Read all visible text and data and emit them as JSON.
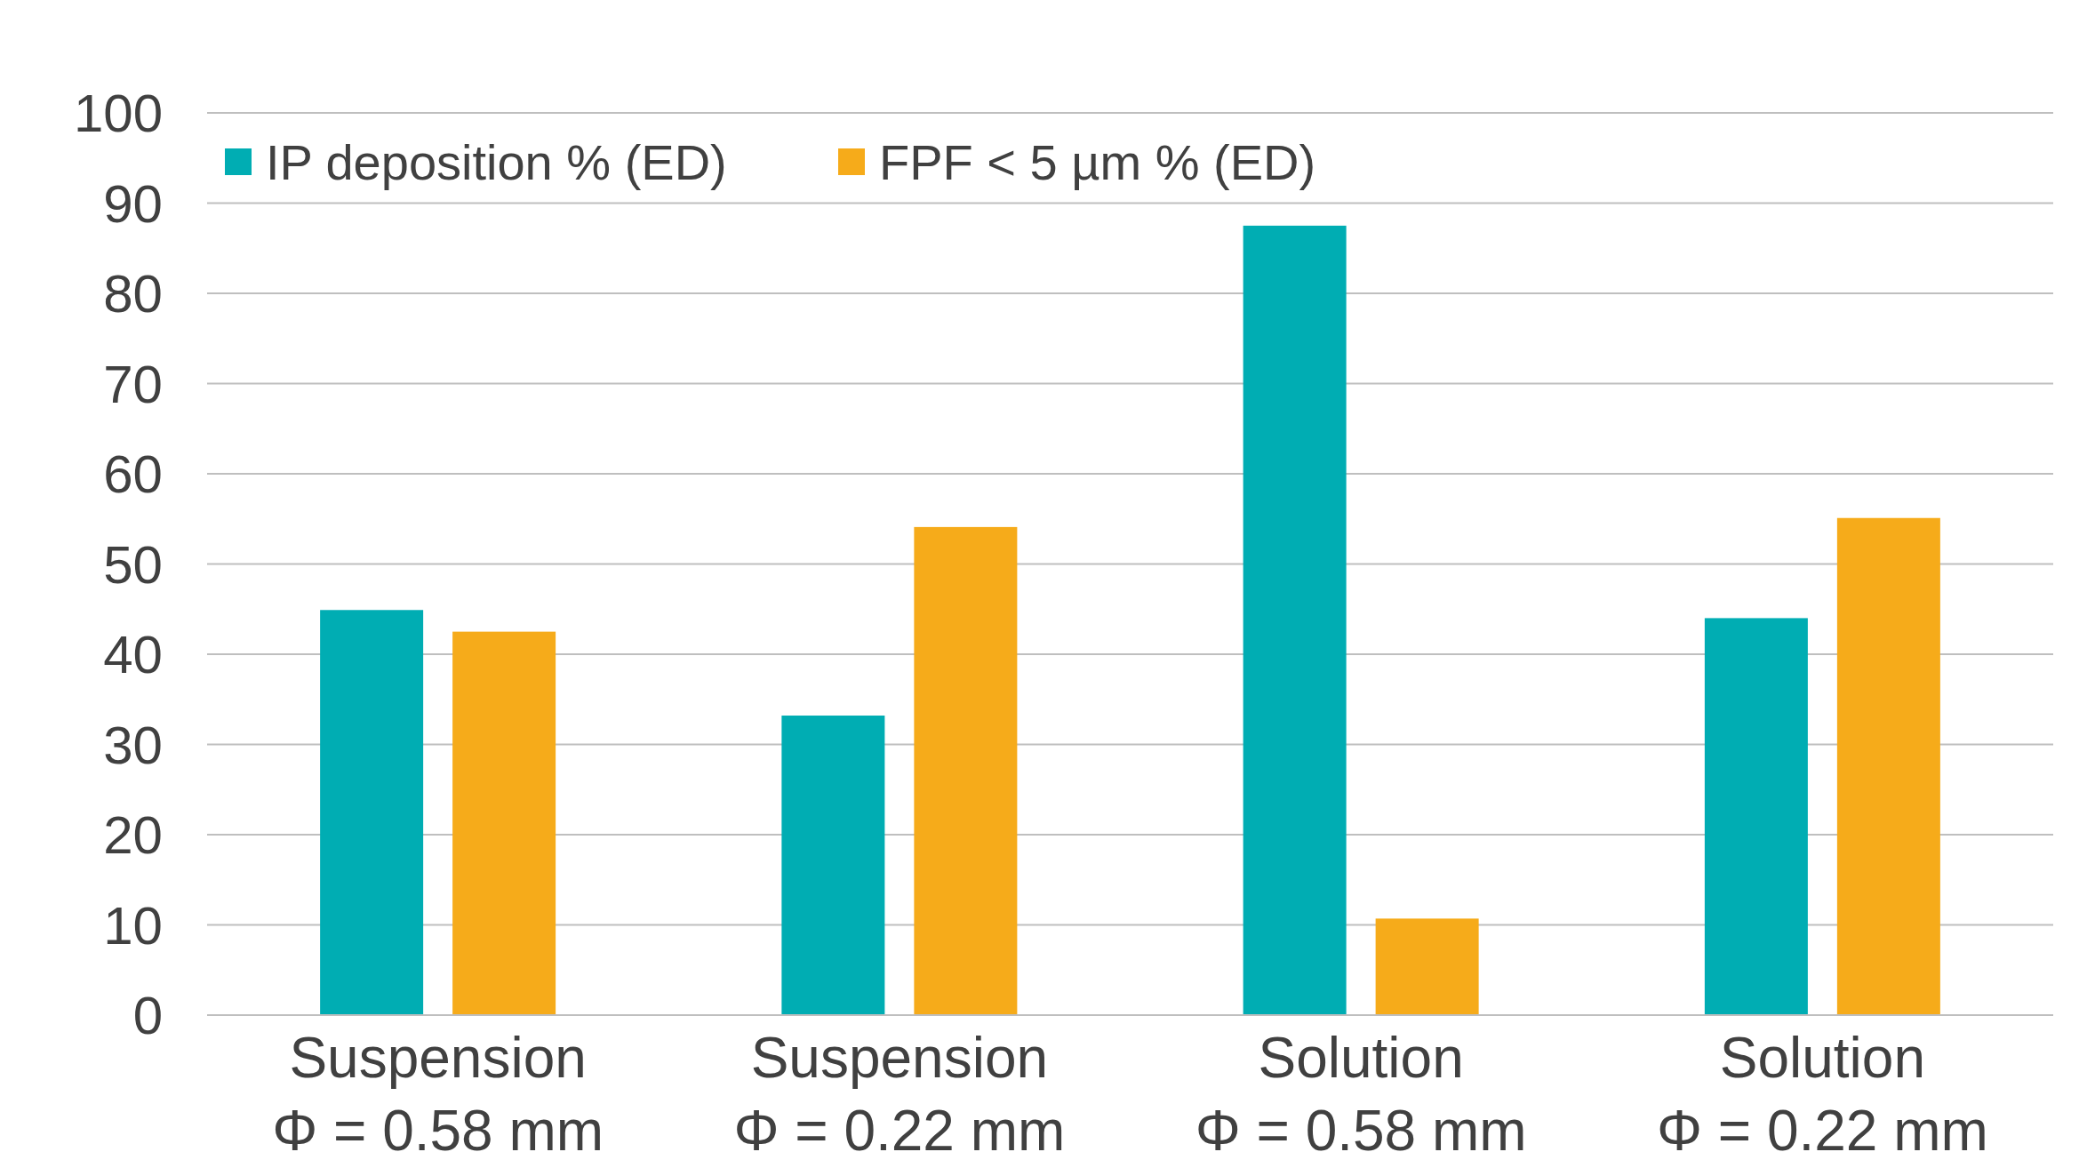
{
  "chart_data": {
    "type": "bar",
    "categories": [
      "Suspension\nΦ = 0.58 mm",
      "Suspension\nΦ = 0.22 mm",
      "Solution\nΦ = 0.58 mm",
      "Solution\nΦ = 0.22 mm"
    ],
    "series": [
      {
        "name": "IP deposition % (ED)",
        "color": "#00adb3",
        "values": [
          44.9,
          33.2,
          87.5,
          44.0
        ]
      },
      {
        "name": "FPF < 5 µm % (ED)",
        "color": "#f6ab1a",
        "values": [
          42.5,
          54.1,
          10.7,
          55.1
        ]
      }
    ],
    "ylim": [
      0,
      100
    ],
    "yticks": [
      0,
      10,
      20,
      30,
      40,
      50,
      60,
      70,
      80,
      90,
      100
    ],
    "grid": "y",
    "legend": "top left"
  }
}
